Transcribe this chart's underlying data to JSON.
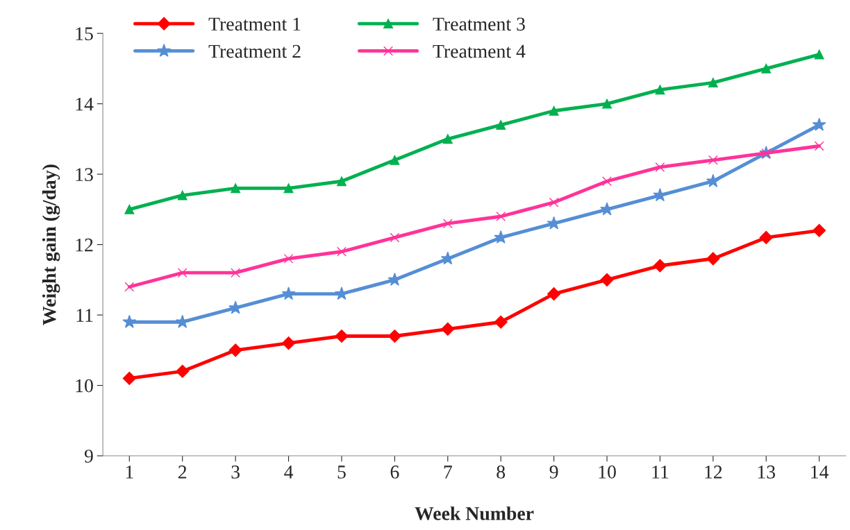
{
  "chart_data": {
    "type": "line",
    "xlabel": "Week Number",
    "ylabel": "Weight gain (g/day)",
    "categories": [
      "1",
      "2",
      "3",
      "4",
      "5",
      "6",
      "7",
      "8",
      "9",
      "10",
      "11",
      "12",
      "13",
      "14"
    ],
    "series": [
      {
        "name": "Treatment 1",
        "color": "#ff0000",
        "marker": "diamond",
        "values": [
          10.1,
          10.2,
          10.5,
          10.6,
          10.7,
          10.7,
          10.8,
          10.9,
          11.3,
          11.5,
          11.7,
          11.8,
          12.1,
          12.2
        ]
      },
      {
        "name": "Treatment 2",
        "color": "#558ed5",
        "marker": "star",
        "values": [
          10.9,
          10.9,
          11.1,
          11.3,
          11.3,
          11.5,
          11.8,
          12.1,
          12.3,
          12.5,
          12.7,
          12.9,
          13.3,
          13.7
        ]
      },
      {
        "name": "Treatment 3",
        "color": "#00b050",
        "marker": "triangle",
        "values": [
          12.5,
          12.7,
          12.8,
          12.8,
          12.9,
          13.2,
          13.5,
          13.7,
          13.9,
          14.0,
          14.2,
          14.3,
          14.5,
          14.7
        ]
      },
      {
        "name": "Treatment 4",
        "color": "#ff3399",
        "marker": "cross",
        "values": [
          11.4,
          11.6,
          11.6,
          11.8,
          11.9,
          12.1,
          12.3,
          12.4,
          12.6,
          12.9,
          13.1,
          13.2,
          13.3,
          13.4
        ]
      }
    ],
    "ylim": [
      9,
      15
    ],
    "yticks": [
      9,
      10,
      11,
      12,
      13,
      14,
      15
    ],
    "grid": false,
    "legend": "top left",
    "line_style": "solid"
  }
}
